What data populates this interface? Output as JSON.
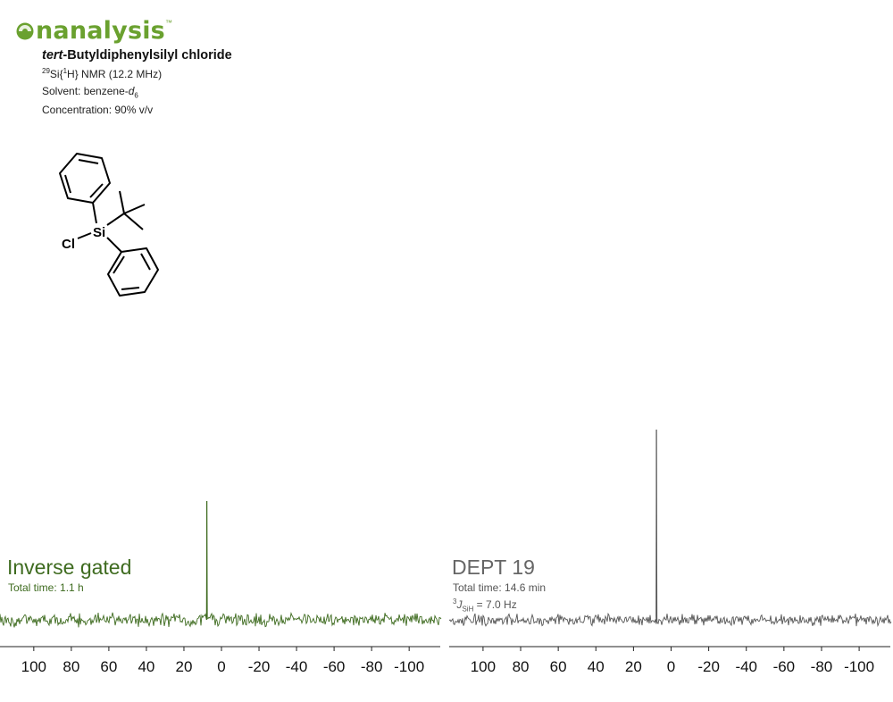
{
  "brand": {
    "name": "nanalysis",
    "tm": "™",
    "color": "#6aa12f"
  },
  "compound": {
    "prefix": "tert",
    "name": "-Butyldiphenylsilyl chloride"
  },
  "experiment": {
    "isotope": "29",
    "nucleus_a": "Si{",
    "decouple_sup": "1",
    "nucleus_b": "H} NMR (12.2 MHz)",
    "solvent_label": "Solvent: benzene-",
    "solvent_italic": "d",
    "solvent_sub": "6",
    "concentration": "Concentration: 90% v/v"
  },
  "structure": {
    "atom_si": "Si",
    "atom_cl": "Cl"
  },
  "chart_data": [
    {
      "type": "line",
      "title": "Inverse gated",
      "subtitle": "Total time: 1.1 h",
      "color": "#3e6b1f",
      "xlabel": "",
      "ylabel": "",
      "xlim": [
        118,
        -118
      ],
      "x_ticks": [
        100,
        80,
        60,
        40,
        20,
        0,
        -20,
        -40,
        -60,
        -80,
        -100
      ],
      "x_tick_labels": [
        "100",
        "80",
        "60",
        "40",
        "20",
        "0",
        "-20",
        "-40",
        "-60",
        "-80",
        "-100"
      ],
      "peaks": [
        {
          "x": 7.8,
          "height": 1.0
        }
      ],
      "baseline": "noisy"
    },
    {
      "type": "line",
      "title": "DEPT 19",
      "subtitle": "Total time: 14.6 min",
      "coupling": {
        "sup": "3",
        "J": "J",
        "sub": "SiH",
        "value": " = 7.0 Hz"
      },
      "color": "#555555",
      "xlabel": "",
      "ylabel": "",
      "xlim": [
        118,
        -118
      ],
      "x_ticks": [
        100,
        80,
        60,
        40,
        20,
        0,
        -20,
        -40,
        -60,
        -80,
        -100
      ],
      "x_tick_labels": [
        "100",
        "80",
        "60",
        "40",
        "20",
        "0",
        "-20",
        "-40",
        "-60",
        "-80",
        "-100"
      ],
      "peaks": [
        {
          "x": 7.8,
          "height": 1.0
        }
      ],
      "baseline": "noisy"
    }
  ]
}
